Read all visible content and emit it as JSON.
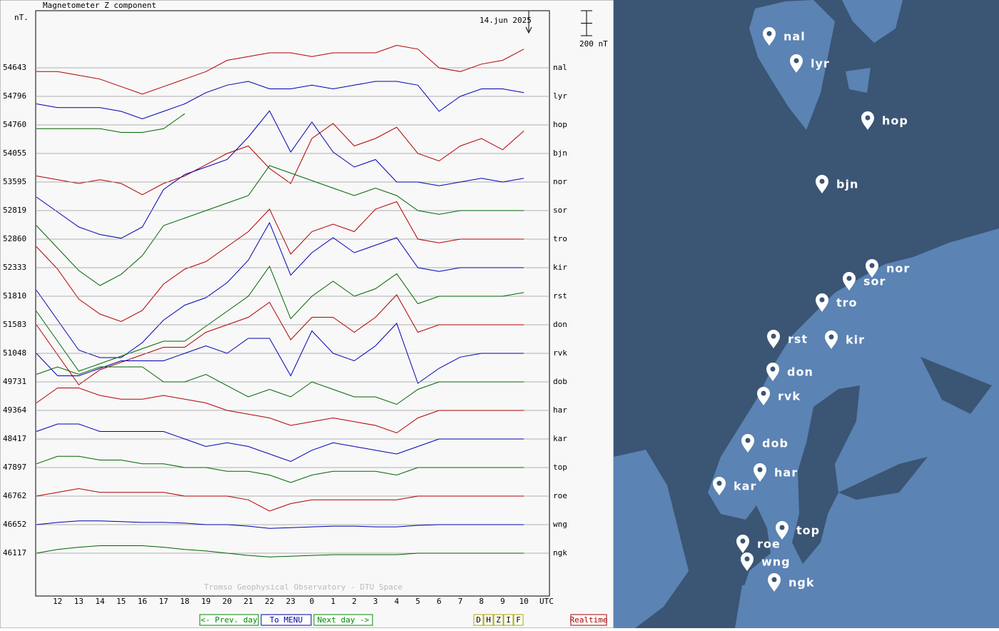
{
  "header": {
    "title": "Magnetometer Z component",
    "unit": "nT.",
    "date": "14.jun 2025",
    "scale": {
      "value": 200,
      "label": "200 nT"
    },
    "watermark": "Tromso Geophysical Observatory - DTU Space"
  },
  "plot": {
    "hours": [
      null,
      "12",
      "13",
      "14",
      "15",
      "16",
      "17",
      "18",
      "19",
      "20",
      "21",
      "22",
      "23",
      "0",
      "1",
      "2",
      "3",
      "4",
      "5",
      "6",
      "7",
      "8",
      "9",
      "10"
    ],
    "time_unit": "UTC",
    "stations": [
      {
        "name": "nal",
        "baseline": 54643,
        "color": "#b00000",
        "values": [
          -30,
          -30,
          -60,
          -90,
          -150,
          -210,
          -150,
          -90,
          -30,
          60,
          90,
          120,
          120,
          90,
          120,
          120,
          120,
          180,
          150,
          0,
          -30,
          30,
          60,
          150
        ]
      },
      {
        "name": "lyr",
        "baseline": 54796,
        "color": "#0000b0",
        "values": [
          -60,
          -90,
          -90,
          -90,
          -120,
          -180,
          -120,
          -60,
          30,
          90,
          120,
          60,
          60,
          90,
          60,
          90,
          120,
          120,
          90,
          -120,
          0,
          60,
          60,
          30
        ]
      },
      {
        "name": "hop",
        "baseline": 54760,
        "color": "#006400",
        "values": [
          -30,
          -30,
          -30,
          -30,
          -60,
          -60,
          -30,
          90,
          null,
          null,
          null,
          null,
          null,
          null,
          null,
          null,
          null,
          null,
          null,
          null,
          null,
          null,
          null,
          null
        ]
      },
      {
        "name": "bjn",
        "baseline": 54055,
        "color": "#b00000",
        "values": [
          -180,
          -210,
          -240,
          -210,
          -240,
          -330,
          -240,
          -180,
          -90,
          0,
          60,
          -120,
          -240,
          120,
          240,
          60,
          120,
          210,
          0,
          -60,
          60,
          120,
          30,
          180
        ]
      },
      {
        "name": "nor",
        "baseline": 53595,
        "color": "#0000b0",
        "values": [
          -120,
          -240,
          -360,
          -420,
          -450,
          -360,
          -60,
          60,
          120,
          180,
          360,
          570,
          240,
          480,
          240,
          120,
          180,
          0,
          0,
          -30,
          0,
          30,
          0,
          30
        ]
      },
      {
        "name": "sor",
        "baseline": 52819,
        "color": "#006400",
        "values": [
          -120,
          -300,
          -480,
          -600,
          -510,
          -360,
          -120,
          -60,
          0,
          60,
          120,
          360,
          300,
          240,
          180,
          120,
          180,
          120,
          0,
          -30,
          0,
          0,
          0,
          0
        ]
      },
      {
        "name": "tro",
        "baseline": 52860,
        "color": "#b00000",
        "values": [
          -60,
          -240,
          -480,
          -600,
          -660,
          -570,
          -360,
          -240,
          -180,
          -60,
          60,
          240,
          -120,
          60,
          120,
          60,
          240,
          300,
          0,
          -30,
          0,
          0,
          0,
          0
        ]
      },
      {
        "name": "kir",
        "baseline": 52333,
        "color": "#0000b0",
        "values": [
          -180,
          -420,
          -660,
          -720,
          -720,
          -600,
          -420,
          -300,
          -240,
          -120,
          60,
          360,
          -60,
          120,
          240,
          120,
          180,
          240,
          0,
          -30,
          0,
          0,
          0,
          0
        ]
      },
      {
        "name": "rst",
        "baseline": 51810,
        "color": "#006400",
        "values": [
          -120,
          -360,
          -600,
          -540,
          -480,
          -420,
          -360,
          -360,
          -240,
          -120,
          0,
          240,
          -180,
          0,
          120,
          0,
          60,
          180,
          -60,
          0,
          0,
          0,
          0,
          30
        ]
      },
      {
        "name": "don",
        "baseline": 51583,
        "color": "#b00000",
        "values": [
          0,
          -240,
          -480,
          -360,
          -300,
          -240,
          -180,
          -180,
          -60,
          0,
          60,
          180,
          -120,
          60,
          60,
          -60,
          60,
          240,
          -60,
          0,
          0,
          0,
          0,
          0
        ]
      },
      {
        "name": "rvk",
        "baseline": 51048,
        "color": "#0000b0",
        "values": [
          0,
          -180,
          -180,
          -120,
          -60,
          -60,
          -60,
          0,
          60,
          0,
          120,
          120,
          -180,
          180,
          0,
          -60,
          60,
          240,
          -240,
          -120,
          -30,
          0,
          0,
          0
        ]
      },
      {
        "name": "dob",
        "baseline": 49731,
        "color": "#006400",
        "values": [
          60,
          120,
          60,
          120,
          120,
          120,
          0,
          0,
          60,
          -30,
          -120,
          -60,
          -120,
          0,
          -60,
          -120,
          -120,
          -180,
          -60,
          0,
          0,
          0,
          0,
          0
        ]
      },
      {
        "name": "har",
        "baseline": 49364,
        "color": "#b00000",
        "values": [
          60,
          180,
          180,
          120,
          90,
          90,
          120,
          90,
          60,
          0,
          -30,
          -60,
          -120,
          -90,
          -60,
          -90,
          -120,
          -180,
          -60,
          0,
          0,
          0,
          0,
          0
        ]
      },
      {
        "name": "kar",
        "baseline": 48417,
        "color": "#0000b0",
        "values": [
          60,
          120,
          120,
          60,
          60,
          60,
          60,
          0,
          -60,
          -30,
          -60,
          -120,
          -180,
          -90,
          -30,
          -60,
          -90,
          -120,
          -60,
          0,
          0,
          0,
          0,
          0
        ]
      },
      {
        "name": "top",
        "baseline": 47897,
        "color": "#006400",
        "values": [
          30,
          90,
          90,
          60,
          60,
          30,
          30,
          0,
          0,
          -30,
          -30,
          -60,
          -120,
          -60,
          -30,
          -30,
          -30,
          -60,
          0,
          0,
          0,
          0,
          0,
          0
        ]
      },
      {
        "name": "roe",
        "baseline": 46762,
        "color": "#b00000",
        "values": [
          0,
          30,
          60,
          30,
          30,
          30,
          30,
          0,
          0,
          0,
          -30,
          -120,
          -60,
          -30,
          -30,
          -30,
          -30,
          -30,
          0,
          0,
          0,
          0,
          0,
          0
        ]
      },
      {
        "name": "wng",
        "baseline": 46652,
        "color": "#0000b0",
        "values": [
          0,
          18,
          30,
          30,
          24,
          18,
          18,
          12,
          0,
          0,
          -12,
          -30,
          -24,
          -18,
          -12,
          -12,
          -18,
          -18,
          -6,
          0,
          0,
          0,
          0,
          0
        ]
      },
      {
        "name": "ngk",
        "baseline": 46117,
        "color": "#006400",
        "values": [
          0,
          30,
          48,
          60,
          60,
          60,
          48,
          30,
          18,
          0,
          -18,
          -30,
          -24,
          -18,
          -12,
          -12,
          -12,
          -12,
          0,
          0,
          0,
          0,
          0,
          0
        ]
      }
    ]
  },
  "nav": {
    "prev": "<- Prev. day",
    "menu": "To MENU",
    "next": "Next day ->",
    "components": [
      "D",
      "H",
      "Z",
      "I",
      "F"
    ],
    "realtime": "Realtime"
  }
}
